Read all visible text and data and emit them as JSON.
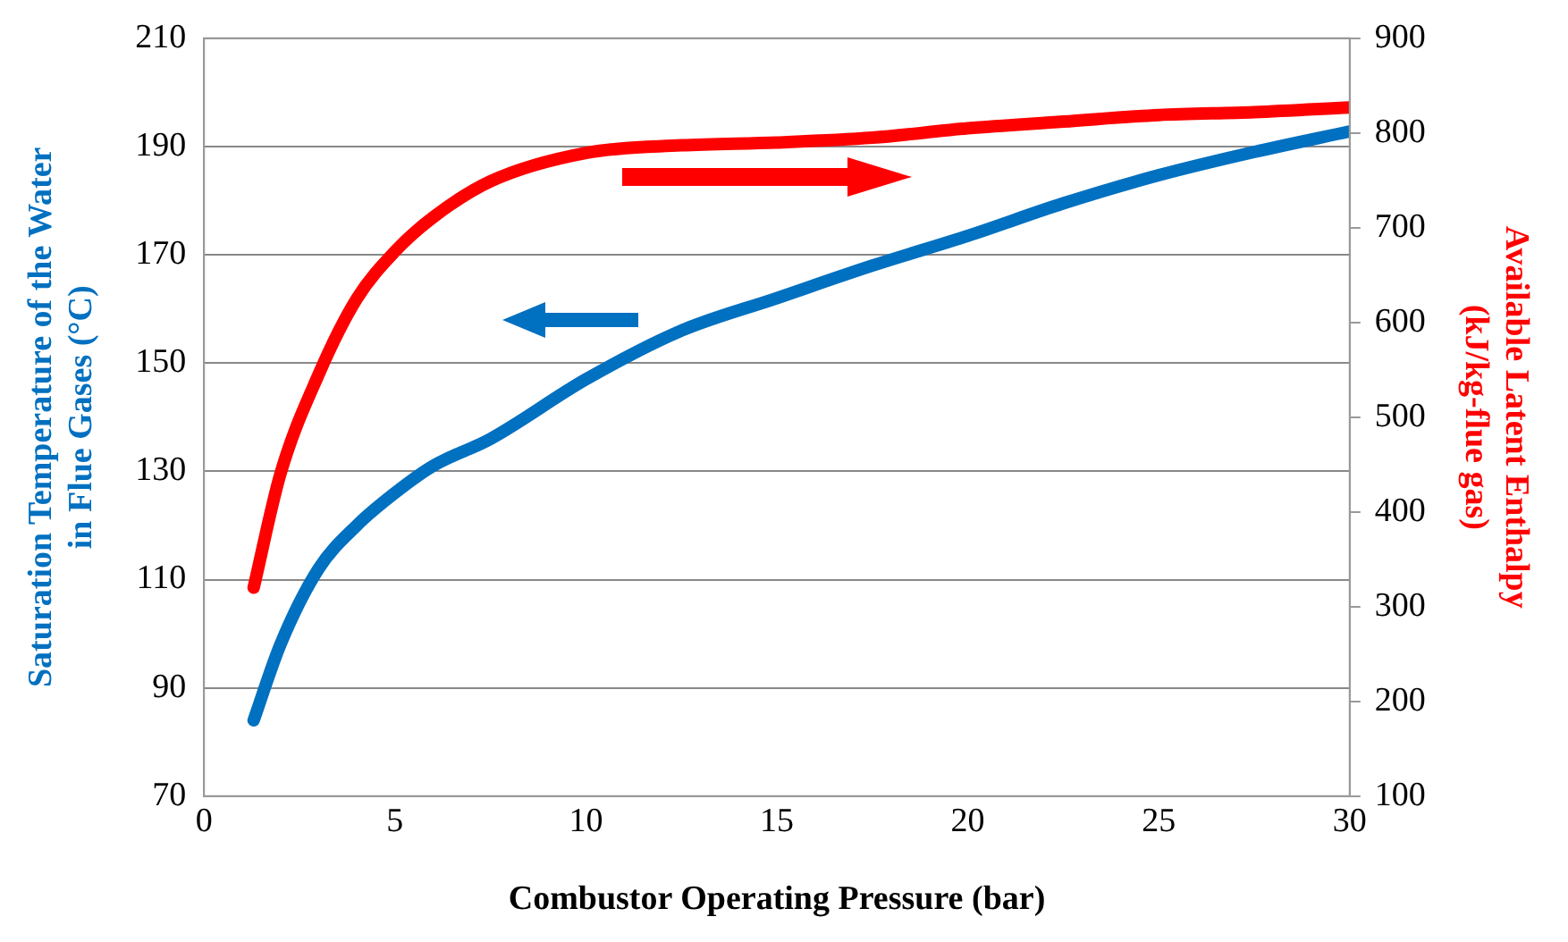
{
  "chart_data": {
    "type": "line",
    "xlabel": "Combustor Operating Pressure (bar)",
    "ylabel": "Saturation Temperature of the Water in Flue Gases (°C)",
    "y2label": "Available Latent Enthalpy (kJ/kg-flue gas)",
    "xlim": [
      0,
      30
    ],
    "xticks": [
      0,
      5,
      10,
      15,
      20,
      25,
      30
    ],
    "ylim": [
      70,
      210
    ],
    "yticks": [
      70,
      90,
      110,
      130,
      150,
      170,
      190,
      210
    ],
    "y2lim": [
      100,
      900
    ],
    "y2ticks": [
      100,
      200,
      300,
      400,
      500,
      600,
      700,
      800,
      900
    ],
    "grid": "y",
    "legend": false,
    "marker": "none",
    "line_style": "solid",
    "series": [
      {
        "color": "#0070c0",
        "x": [
          1.3,
          2,
          3,
          4,
          5,
          6,
          7.5,
          10,
          12.5,
          15,
          17.5,
          20,
          22.5,
          25,
          27.5,
          30
        ],
        "values": [
          84,
          98,
          112,
          120,
          126,
          131,
          136,
          147,
          156,
          162,
          168,
          173.5,
          179.5,
          184.7,
          189,
          192.8
        ]
      },
      {
        "color": "#ff0000",
        "axis": "y2",
        "x": [
          1.3,
          2,
          3,
          4,
          5,
          6,
          7.5,
          10,
          12.5,
          15,
          17.5,
          20,
          22.5,
          25,
          27.5,
          30
        ],
        "values": [
          320,
          440,
          545,
          625,
          675,
          711,
          749,
          779,
          787,
          790,
          795,
          805,
          812,
          819,
          822,
          827
        ]
      }
    ]
  }
}
